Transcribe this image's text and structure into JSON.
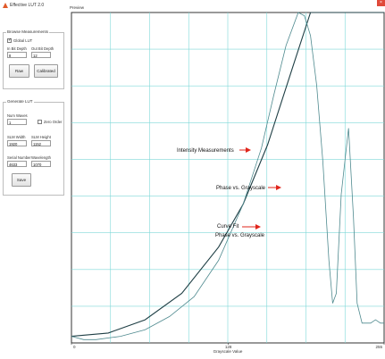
{
  "window": {
    "title": "Effective LUT 2.0",
    "close_glyph": "×",
    "icon": "app-icon"
  },
  "browse": {
    "title": "Browse Measurements",
    "global_lut_label": "Global LUT",
    "global_lut_checked": true,
    "in_bit_depth_label": "In Bit Depth",
    "in_bit_depth_value": "8",
    "out_bit_depth_label": "Out Bit Depth",
    "out_bit_depth_value": "12",
    "raw_button": "Raw",
    "calibrated_button": "Calibrated"
  },
  "generate": {
    "title": "Generate LUT",
    "num_waves_label": "Num Waves",
    "num_waves_value": "1",
    "zero_order_label": "Zero Order",
    "zero_order_checked": false,
    "slm_width_label": "SLM Width",
    "slm_width_value": "1920",
    "slm_height_label": "SLM Height",
    "slm_height_value": "1152",
    "serial_number_label": "Serial Number",
    "serial_number_value": "4633",
    "wavelength_label": "Wavelength",
    "wavelength_value": "1070",
    "save_button": "Save"
  },
  "preview": {
    "title": "Preview",
    "colors": {
      "plot_border": "#333333",
      "grid": "#7fd8d8",
      "arrow": "#e0251b",
      "curve_dark": "#1f3f45",
      "curve_light": "#4f8a8f"
    },
    "annotations": {
      "intensity": "Intensity Measurements",
      "phase": "Phase vs. Grayscale",
      "fit_line1": "Curve Fit",
      "fit_line2": "Phase vs. Grayscale"
    }
  },
  "chart_data": {
    "type": "line",
    "title": "",
    "xlabel": "Grayscale Value",
    "ylabel": "",
    "x_ticks": [
      "0",
      "128",
      "255"
    ],
    "xlim": [
      0,
      255
    ],
    "ylim": [
      0,
      1
    ],
    "grid": true,
    "series": [
      {
        "x": [
          0,
          30,
          60,
          90,
          120,
          140,
          160,
          180,
          195,
          205,
          210,
          215,
          220,
          225,
          230,
          235,
          240,
          255
        ],
        "y": [
          0.02,
          0.03,
          0.07,
          0.15,
          0.29,
          0.42,
          0.6,
          0.83,
          1.0,
          1.0,
          1.0,
          1.0,
          1.0,
          1.0,
          1.0,
          1.0,
          1.0,
          1.0
        ]
      },
      {
        "x": [
          0,
          10,
          20,
          40,
          60,
          80,
          100,
          120,
          140,
          155,
          165,
          175,
          185,
          190,
          195,
          200,
          205,
          210,
          213,
          216,
          220,
          226,
          230,
          233,
          237,
          240,
          244,
          248,
          252,
          255
        ],
        "y": [
          0.02,
          0.01,
          0.01,
          0.02,
          0.04,
          0.08,
          0.14,
          0.25,
          0.42,
          0.59,
          0.75,
          0.9,
          1.0,
          0.99,
          0.93,
          0.78,
          0.55,
          0.25,
          0.12,
          0.15,
          0.45,
          0.65,
          0.38,
          0.12,
          0.06,
          0.06,
          0.06,
          0.07,
          0.06,
          0.06
        ]
      }
    ]
  }
}
